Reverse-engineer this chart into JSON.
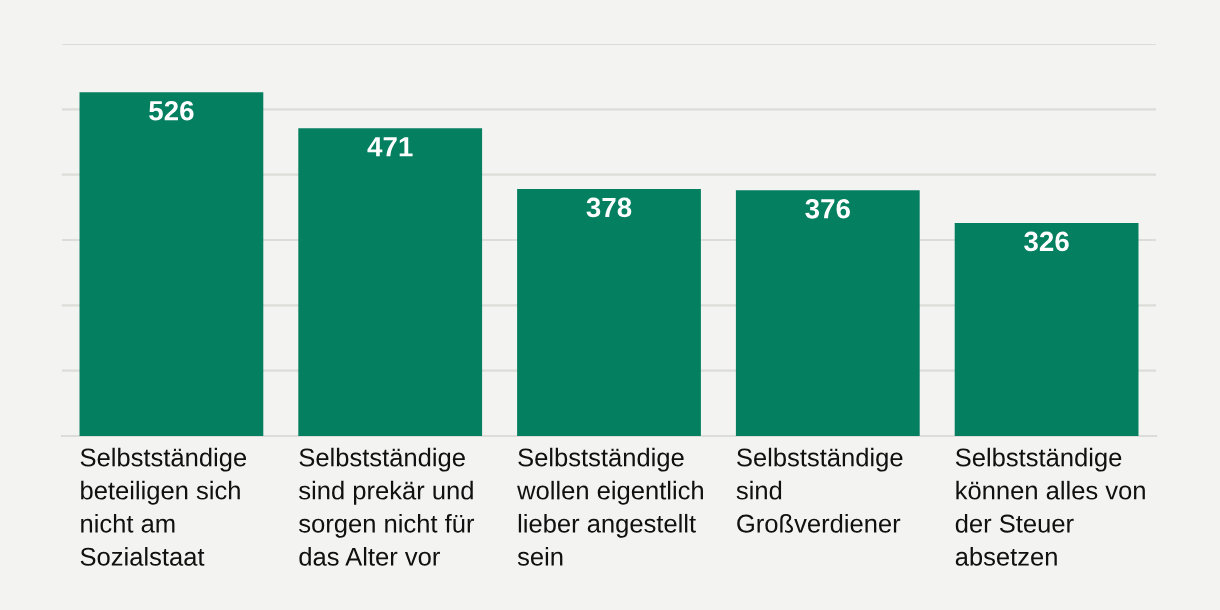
{
  "chart_data": {
    "type": "bar",
    "categories": [
      "Selbstständige beteiligen sich nicht am Sozialstaat",
      "Selbstständige sind prekär und sorgen nicht für das Alter vor",
      "Selbstständige wollen eigentlich lieber angestellt sein",
      "Selbstständige sind Großverdiener",
      "Selbstständige können alles von der Steuer absetzen"
    ],
    "values": [
      526,
      471,
      378,
      376,
      326
    ],
    "color": "#047f5f",
    "data_labels": true,
    "ylim": [
      0,
      600
    ],
    "yticks": [
      {
        "value": 100,
        "label": null
      },
      {
        "value": 200,
        "label": null
      },
      {
        "value": 300,
        "label": null
      },
      {
        "value": 400,
        "label": null
      },
      {
        "value": 500,
        "label": null
      },
      {
        "value": 600,
        "label": null
      }
    ],
    "grid": "y",
    "tick_labels": "x"
  }
}
